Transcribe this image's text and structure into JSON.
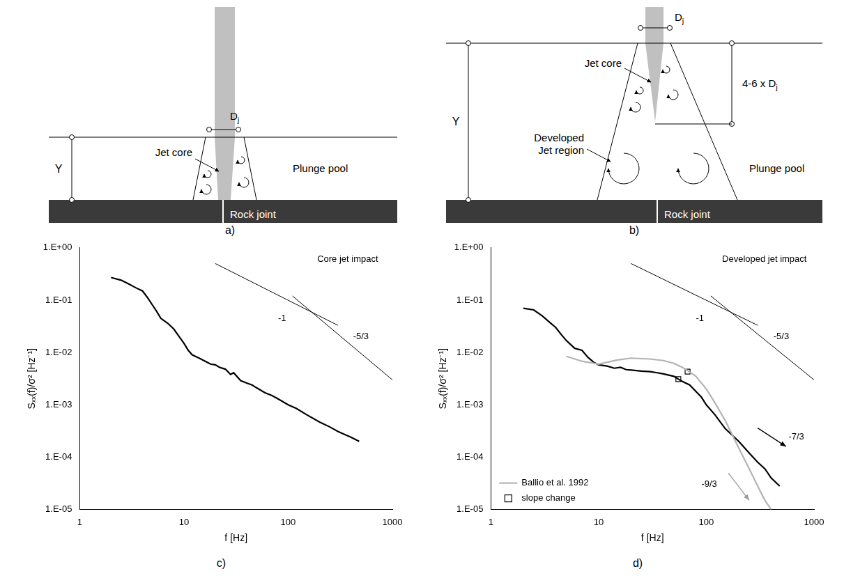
{
  "diagrams": [
    {
      "panel": "a)",
      "depth": "Y",
      "jet_diameter": {
        "base": "D",
        "sub": "j"
      },
      "jet_core": "Jet core",
      "pool": "Plunge pool",
      "rock": "Rock joint"
    },
    {
      "panel": "b)",
      "depth": "Y",
      "jet_diameter": {
        "base": "D",
        "sub": "j"
      },
      "core_length": {
        "base": "4-6 x D",
        "sub": "j"
      },
      "jet_core": "Jet core",
      "developed": "Developed Jet region",
      "pool": "Plunge pool",
      "rock": "Rock joint"
    }
  ],
  "chart_data": [
    {
      "type": "line",
      "panel": "c)",
      "x_label": "f [Hz]",
      "y_label": "Sₓₓ(f)/σ² [Hz⁻¹]",
      "log": true,
      "grid": false,
      "xlim": [
        1,
        1000
      ],
      "xticks": [
        1,
        10,
        100,
        1000
      ],
      "ylim": [
        1e-05,
        1
      ],
      "yticks": [
        {
          "value": 1e-05,
          "label": "1.E-05"
        },
        {
          "value": 0.0001,
          "label": "1.E-04"
        },
        {
          "value": 0.001,
          "label": "1.E-03"
        },
        {
          "value": 0.01,
          "label": "1.E-02"
        },
        {
          "value": 0.1,
          "label": "1.E-01"
        },
        {
          "value": 1,
          "label": "1.E+00"
        }
      ],
      "series": [
        {
          "color": "#000000",
          "line_style": "solid",
          "x": [
            2,
            2.5,
            3,
            3.5,
            4,
            4.5,
            5,
            5.5,
            6,
            7,
            8,
            9,
            10,
            11,
            12,
            14,
            16,
            18,
            20,
            22,
            25,
            28,
            30,
            35,
            40,
            45,
            50,
            60,
            70,
            80,
            100,
            120,
            150,
            200,
            250,
            300,
            350,
            400,
            480
          ],
          "values": [
            0.27,
            0.24,
            0.2,
            0.17,
            0.15,
            0.11,
            0.08,
            0.06,
            0.045,
            0.036,
            0.028,
            0.02,
            0.015,
            0.011,
            0.009,
            0.0078,
            0.0068,
            0.006,
            0.0058,
            0.0052,
            0.0048,
            0.0038,
            0.0041,
            0.0029,
            0.0026,
            0.0024,
            0.0021,
            0.0017,
            0.0015,
            0.0013,
            0.001,
            0.00085,
            0.00065,
            0.00047,
            0.00038,
            0.00031,
            0.00027,
            0.00024,
            0.0002
          ]
        },
        {
          "color": "#000000",
          "line_style": "thin",
          "x": [
            20,
            300
          ],
          "values": [
            0.5,
            0.033
          ]
        },
        {
          "color": "#000000",
          "line_style": "thin",
          "x": [
            110,
            1000
          ],
          "values": [
            0.12,
            0.003
          ]
        }
      ],
      "annotations": [
        {
          "text": "Core jet impact",
          "x": 190,
          "y": 0.6
        },
        {
          "text": "-1",
          "x": 80,
          "y": 0.045
        },
        {
          "text": "-5/3",
          "x": 420,
          "y": 0.02
        }
      ]
    },
    {
      "type": "line",
      "panel": "d)",
      "x_label": "f [Hz]",
      "y_label": "Sₓₓ(f)/σ² [Hz⁻¹]",
      "log": true,
      "grid": false,
      "legend": "lower left",
      "xlim": [
        1,
        1000
      ],
      "xticks": [
        1,
        10,
        100,
        1000
      ],
      "ylim": [
        1e-05,
        1
      ],
      "yticks": [
        {
          "value": 1e-05,
          "label": "1.E-05"
        },
        {
          "value": 0.0001,
          "label": "1.E-04"
        },
        {
          "value": 0.001,
          "label": "1.E-03"
        },
        {
          "value": 0.01,
          "label": "1.E-02"
        },
        {
          "value": 0.1,
          "label": "1.E-01"
        },
        {
          "value": 1,
          "label": "1.E+00"
        }
      ],
      "series": [
        {
          "name": "Ballio et al. 1992",
          "color": "#b3b3b3",
          "line_style": "solid",
          "x": [
            5,
            7,
            10,
            15,
            20,
            30,
            40,
            50,
            60,
            67,
            80,
            100,
            120,
            150,
            200,
            250,
            300,
            350,
            400
          ],
          "values": [
            0.0085,
            0.0068,
            0.006,
            0.0072,
            0.0078,
            0.0075,
            0.007,
            0.0062,
            0.0052,
            0.0045,
            0.0035,
            0.002,
            0.0011,
            0.0005,
            0.00015,
            6e-05,
            2.8e-05,
            1.5e-05,
            1e-05
          ]
        },
        {
          "color": "#000000",
          "line_style": "solid",
          "x": [
            2,
            2.5,
            3,
            3.5,
            4,
            4.5,
            5,
            6,
            7,
            8,
            9,
            10,
            12,
            14,
            16,
            18,
            20,
            25,
            30,
            35,
            40,
            50,
            55,
            60,
            70,
            80,
            90,
            100,
            120,
            150,
            200,
            250,
            300,
            350,
            400,
            480
          ],
          "values": [
            0.07,
            0.065,
            0.05,
            0.038,
            0.03,
            0.022,
            0.017,
            0.012,
            0.011,
            0.008,
            0.0065,
            0.0058,
            0.0055,
            0.005,
            0.0052,
            0.0047,
            0.0046,
            0.0044,
            0.0043,
            0.0041,
            0.0039,
            0.0035,
            0.0031,
            0.0028,
            0.0024,
            0.0018,
            0.0014,
            0.001,
            0.00065,
            0.00035,
            0.0002,
            0.00012,
            8e-05,
            6e-05,
            4e-05,
            2.8e-05
          ]
        },
        {
          "color": "#000000",
          "line_style": "thin",
          "x": [
            20,
            300
          ],
          "values": [
            0.5,
            0.033
          ]
        },
        {
          "color": "#000000",
          "line_style": "thin",
          "x": [
            110,
            1000
          ],
          "values": [
            0.12,
            0.003
          ]
        },
        {
          "name": "slope change",
          "type": "scatter",
          "marker": "square",
          "color": "#000000",
          "x": [
            55,
            67
          ],
          "values": [
            0.0031,
            0.0043
          ]
        }
      ],
      "annotations": [
        {
          "text": "Developed jet impact",
          "x": 140,
          "y": 0.6
        },
        {
          "text": "-1",
          "x": 80,
          "y": 0.045
        },
        {
          "text": "-5/3",
          "x": 420,
          "y": 0.02
        }
      ],
      "arrows": [
        {
          "text": "-7/3",
          "color": "#000000",
          "from": [
            300,
            0.00036
          ],
          "to": [
            550,
            0.00016
          ],
          "x": 580,
          "y": 0.00024
        },
        {
          "text": "-9/3",
          "color": "#9a9a9a",
          "from": [
            160,
            5e-05
          ],
          "to": [
            250,
            1.5e-05
          ],
          "x": 90,
          "y": 3e-05
        }
      ]
    }
  ]
}
